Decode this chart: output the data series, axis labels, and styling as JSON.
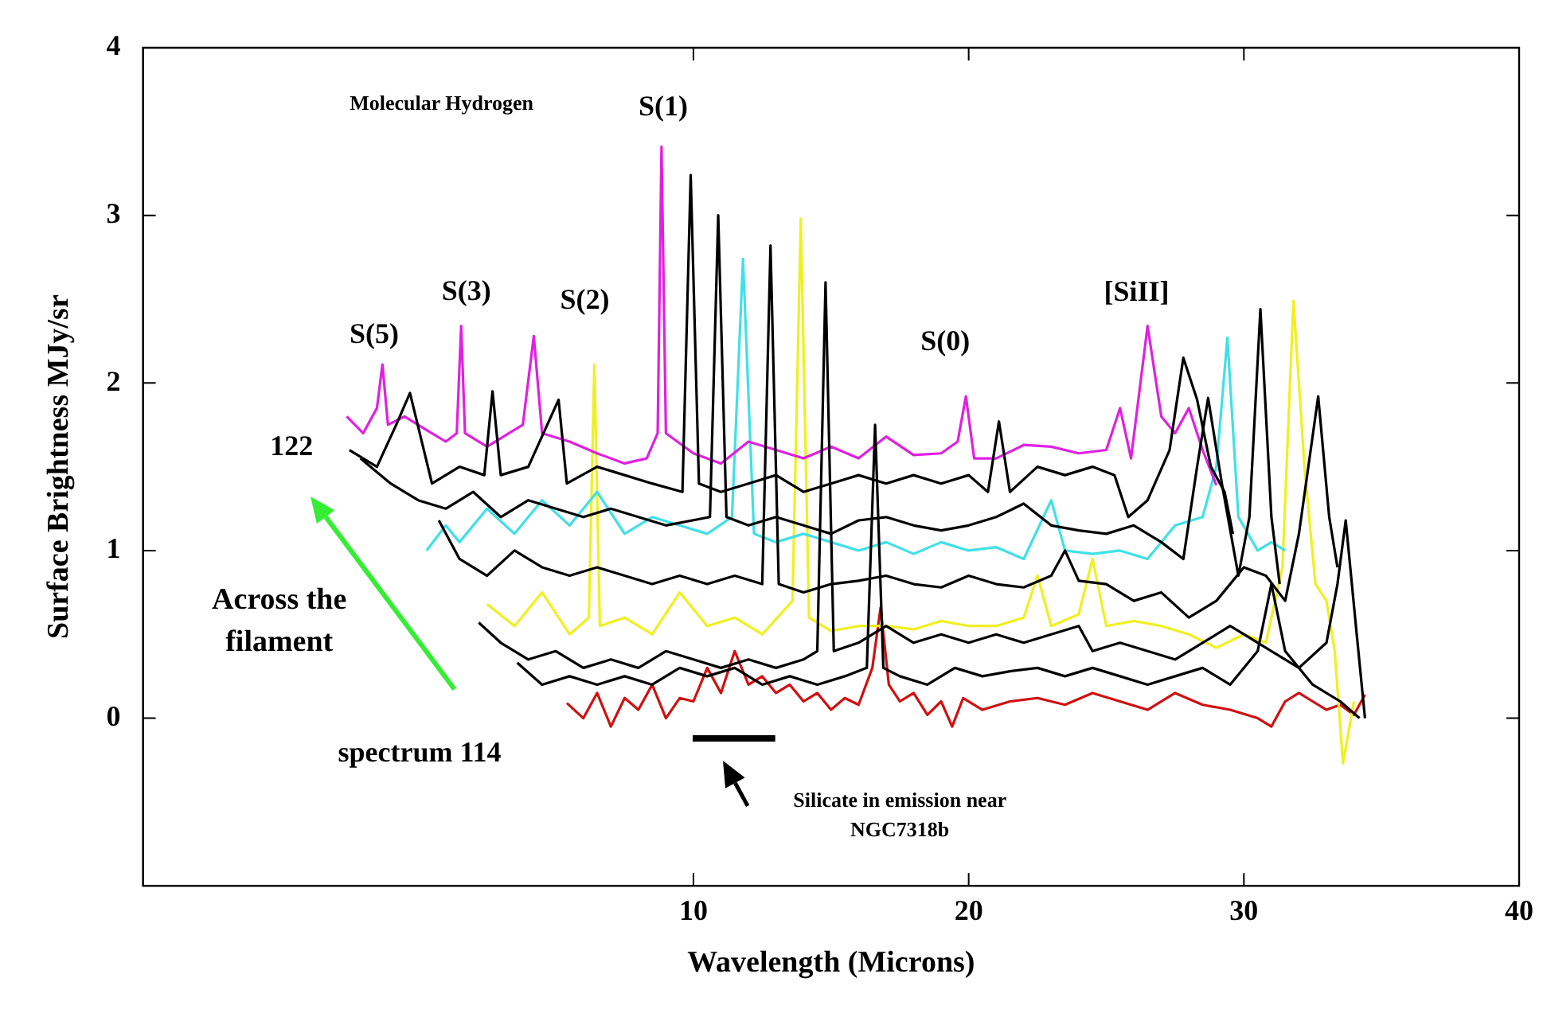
{
  "chart_data": {
    "type": "line",
    "xlabel": "Wavelength (Microns)",
    "ylabel": "Surface Brightness MJy/sr",
    "xlim": [
      -10,
      40
    ],
    "ylim": [
      -1,
      4
    ],
    "xticks": [
      10,
      20,
      30,
      40
    ],
    "yticks": [
      0,
      1,
      2,
      3,
      4
    ],
    "annotations": [
      "Molecular Hydrogen",
      "S(1)",
      "S(5)",
      "S(3)",
      "S(2)",
      "S(0)",
      "[SiII]",
      "122",
      "Across the filament",
      "spectrum 114",
      "Silicate in emission near NGC7318b"
    ],
    "series": [
      {
        "color": "#000000",
        "x": [
          -2.5,
          -1.5,
          -0.8,
          -0.3,
          0.5,
          1.5,
          2.4,
          2.7,
          3.0,
          4,
          5.1,
          5.4,
          6.5,
          7.5,
          8.5,
          9.6,
          9.9,
          10.2,
          11,
          12,
          13,
          14,
          15,
          16,
          17,
          18,
          19,
          20,
          20.7,
          21.1,
          21.5,
          22.5,
          23.5,
          24.5,
          25.3,
          25.8,
          26.5,
          27.3,
          27.8,
          28.3,
          28.8,
          29.3,
          29.6
        ],
        "values": [
          1.6,
          1.5,
          1.75,
          1.94,
          1.4,
          1.5,
          1.45,
          1.95,
          1.45,
          1.5,
          1.9,
          1.4,
          1.5,
          1.45,
          1.4,
          1.35,
          3.24,
          1.4,
          1.35,
          1.4,
          1.45,
          1.35,
          1.4,
          1.45,
          1.4,
          1.45,
          1.4,
          1.45,
          1.35,
          1.77,
          1.35,
          1.5,
          1.45,
          1.5,
          1.45,
          1.2,
          1.3,
          1.6,
          2.15,
          1.9,
          1.5,
          1.35,
          1.1
        ]
      },
      {
        "color": "#000000",
        "x": [
          -2.1,
          -1,
          0,
          1,
          2,
          3,
          4,
          5,
          6,
          7,
          8,
          9,
          10.6,
          10.9,
          11.2,
          12,
          13,
          14,
          15,
          16,
          17,
          18,
          19,
          20,
          21,
          22,
          23,
          24,
          25,
          26,
          27,
          27.8,
          28.3,
          28.7,
          29.2,
          29.8,
          30.2,
          30.6,
          31.0,
          31.3
        ],
        "values": [
          1.55,
          1.4,
          1.3,
          1.25,
          1.35,
          1.2,
          1.3,
          1.25,
          1.2,
          1.25,
          1.2,
          1.15,
          1.2,
          3.0,
          1.2,
          1.15,
          1.2,
          1.15,
          1.1,
          1.18,
          1.2,
          1.15,
          1.12,
          1.15,
          1.2,
          1.28,
          1.15,
          1.12,
          1.1,
          1.15,
          1.05,
          0.95,
          1.5,
          1.91,
          1.4,
          0.85,
          1.2,
          2.44,
          1.2,
          0.8
        ]
      },
      {
        "color": "#000000",
        "x": [
          0.75,
          1.5,
          2.5,
          3.5,
          4.5,
          5.5,
          6.5,
          7.5,
          8.5,
          9.5,
          10.5,
          11.5,
          12.5,
          12.8,
          13.1,
          14,
          15,
          16,
          17,
          18,
          19,
          20,
          21,
          22,
          23,
          23.5,
          24,
          25,
          26,
          27,
          28,
          29,
          30,
          30.8,
          31.5,
          32.0,
          32.7,
          33.1,
          33.4
        ],
        "values": [
          1.18,
          0.95,
          0.85,
          1.0,
          0.9,
          0.85,
          0.9,
          0.85,
          0.8,
          0.85,
          0.8,
          0.85,
          0.8,
          2.82,
          0.8,
          0.75,
          0.8,
          0.82,
          0.85,
          0.8,
          0.78,
          0.85,
          0.8,
          0.78,
          0.85,
          1.0,
          0.82,
          0.8,
          0.7,
          0.75,
          0.6,
          0.7,
          0.9,
          0.85,
          0.7,
          1.1,
          1.92,
          1.2,
          0.9
        ]
      },
      {
        "color": "#000000",
        "x": [
          2.2,
          3,
          4,
          5,
          6,
          7,
          8,
          9,
          10,
          11,
          12,
          13,
          14,
          14.5,
          14.8,
          15.1,
          16,
          17,
          18,
          19,
          20,
          21,
          22,
          23,
          24,
          24.5,
          25.5,
          26.5,
          27.5,
          28.5,
          29.5,
          30,
          31,
          32,
          33,
          33.4,
          33.7,
          34.1,
          34.4
        ],
        "values": [
          0.57,
          0.45,
          0.35,
          0.4,
          0.3,
          0.35,
          0.3,
          0.4,
          0.35,
          0.3,
          0.35,
          0.3,
          0.35,
          0.4,
          2.6,
          0.4,
          0.45,
          0.55,
          0.45,
          0.5,
          0.45,
          0.5,
          0.45,
          0.5,
          0.55,
          0.4,
          0.45,
          0.4,
          0.35,
          0.45,
          0.55,
          0.5,
          0.4,
          0.3,
          0.45,
          0.8,
          1.18,
          0.5,
          0.0
        ]
      },
      {
        "color": "#000000",
        "x": [
          3.6,
          4.5,
          5.5,
          6.5,
          7.5,
          8.5,
          9.5,
          10.5,
          11.5,
          12.5,
          13.5,
          14.5,
          15.5,
          16.3,
          16.6,
          16.9,
          17.5,
          18.5,
          19.5,
          20.5,
          21.5,
          22.5,
          23.5,
          24.5,
          25.5,
          26.5,
          27.5,
          28.5,
          29.5,
          30.5,
          31.0,
          31.5,
          32.5,
          33.5,
          34.2
        ],
        "values": [
          0.33,
          0.2,
          0.25,
          0.2,
          0.25,
          0.2,
          0.3,
          0.25,
          0.3,
          0.2,
          0.25,
          0.2,
          0.25,
          0.3,
          1.75,
          0.3,
          0.25,
          0.2,
          0.3,
          0.25,
          0.28,
          0.3,
          0.25,
          0.3,
          0.25,
          0.2,
          0.25,
          0.3,
          0.2,
          0.4,
          0.8,
          0.4,
          0.2,
          0.1,
          0.0
        ]
      },
      {
        "color": "#e020e0",
        "x": [
          -2.6,
          -2.0,
          -1.5,
          -1.3,
          -1.1,
          -0.5,
          0.3,
          1.0,
          1.4,
          1.56,
          1.7,
          2.5,
          3.3,
          3.8,
          4.2,
          4.5,
          5.5,
          6.5,
          7.5,
          8.3,
          8.7,
          8.84,
          9.0,
          10,
          11,
          12,
          13,
          14,
          15,
          16,
          17,
          18,
          19,
          19.6,
          19.9,
          20.2,
          21,
          22,
          23,
          24,
          25,
          25.5,
          25.9,
          26.5,
          27,
          27.5,
          28,
          28.5,
          29
        ],
        "values": [
          1.8,
          1.7,
          1.85,
          2.11,
          1.75,
          1.8,
          1.72,
          1.65,
          1.7,
          2.34,
          1.7,
          1.62,
          1.7,
          1.75,
          2.28,
          1.7,
          1.65,
          1.58,
          1.52,
          1.55,
          1.7,
          3.41,
          1.7,
          1.58,
          1.52,
          1.65,
          1.6,
          1.55,
          1.62,
          1.55,
          1.68,
          1.57,
          1.58,
          1.65,
          1.92,
          1.55,
          1.55,
          1.63,
          1.62,
          1.58,
          1.6,
          1.85,
          1.55,
          2.34,
          1.8,
          1.7,
          1.85,
          1.6,
          1.39
        ]
      },
      {
        "color": "#40e0e8",
        "x": [
          0.3,
          1.0,
          1.5,
          2.5,
          3.5,
          4.5,
          5.5,
          6.5,
          7.5,
          8.5,
          9.5,
          10.5,
          11.4,
          11.8,
          12.2,
          13,
          14,
          15,
          16,
          17,
          18,
          19,
          20,
          21,
          22,
          23,
          23.5,
          24.5,
          25.5,
          26.5,
          27.5,
          28.5,
          29.0,
          29.4,
          29.8,
          30.5,
          31.0,
          31.5
        ],
        "values": [
          1.0,
          1.15,
          1.05,
          1.25,
          1.1,
          1.3,
          1.15,
          1.35,
          1.1,
          1.2,
          1.15,
          1.1,
          1.2,
          2.74,
          1.1,
          1.05,
          1.1,
          1.05,
          1.0,
          1.05,
          0.98,
          1.05,
          1.0,
          1.02,
          0.95,
          1.3,
          1.0,
          0.98,
          1.0,
          0.95,
          1.15,
          1.2,
          1.5,
          2.27,
          1.2,
          1.0,
          1.05,
          1.0
        ]
      },
      {
        "color": "#f0f020",
        "x": [
          2.5,
          3.5,
          4.5,
          5.5,
          6.2,
          6.4,
          6.6,
          7.5,
          8.5,
          9.5,
          10.5,
          11.5,
          12.5,
          13.6,
          13.9,
          14.2,
          15,
          16,
          17,
          18,
          19,
          20,
          21,
          22,
          22.5,
          23,
          24,
          24.5,
          25,
          26,
          27,
          28,
          29,
          30,
          30.8,
          31.4,
          31.8,
          32.2,
          32.6,
          33.0,
          33.3,
          33.6,
          34.0
        ],
        "values": [
          0.68,
          0.55,
          0.75,
          0.5,
          0.6,
          2.11,
          0.55,
          0.6,
          0.5,
          0.75,
          0.55,
          0.6,
          0.5,
          0.7,
          2.98,
          0.6,
          0.52,
          0.55,
          0.55,
          0.53,
          0.58,
          0.55,
          0.55,
          0.6,
          0.85,
          0.55,
          0.62,
          0.95,
          0.55,
          0.58,
          0.55,
          0.5,
          0.42,
          0.5,
          0.45,
          0.9,
          2.49,
          1.5,
          0.8,
          0.7,
          0.4,
          -0.27,
          0.1
        ]
      },
      {
        "color": "#d01010",
        "x": [
          5.4,
          6,
          6.5,
          7,
          7.5,
          8,
          8.5,
          9,
          9.5,
          10,
          10.5,
          11,
          11.5,
          12,
          12.5,
          13,
          13.5,
          14,
          14.5,
          15,
          15.5,
          16,
          16.5,
          16.8,
          17.1,
          17.5,
          18,
          18.5,
          19,
          19.4,
          19.8,
          20.5,
          21.5,
          22.5,
          23.5,
          24.5,
          25.5,
          26.5,
          27.5,
          28.5,
          29.5,
          30.5,
          31.0,
          31.5,
          32,
          32.5,
          33,
          33.5,
          34.0,
          34.4
        ],
        "values": [
          0.09,
          0.0,
          0.15,
          -0.05,
          0.12,
          0.05,
          0.2,
          0.0,
          0.12,
          0.1,
          0.3,
          0.15,
          0.4,
          0.2,
          0.25,
          0.15,
          0.2,
          0.1,
          0.15,
          0.05,
          0.12,
          0.08,
          0.3,
          0.66,
          0.2,
          0.1,
          0.15,
          0.02,
          0.1,
          -0.05,
          0.12,
          0.05,
          0.1,
          0.12,
          0.08,
          0.15,
          0.1,
          0.05,
          0.15,
          0.08,
          0.05,
          0.0,
          -0.05,
          0.1,
          0.15,
          0.1,
          0.05,
          0.08,
          0.02,
          0.14
        ]
      }
    ]
  }
}
